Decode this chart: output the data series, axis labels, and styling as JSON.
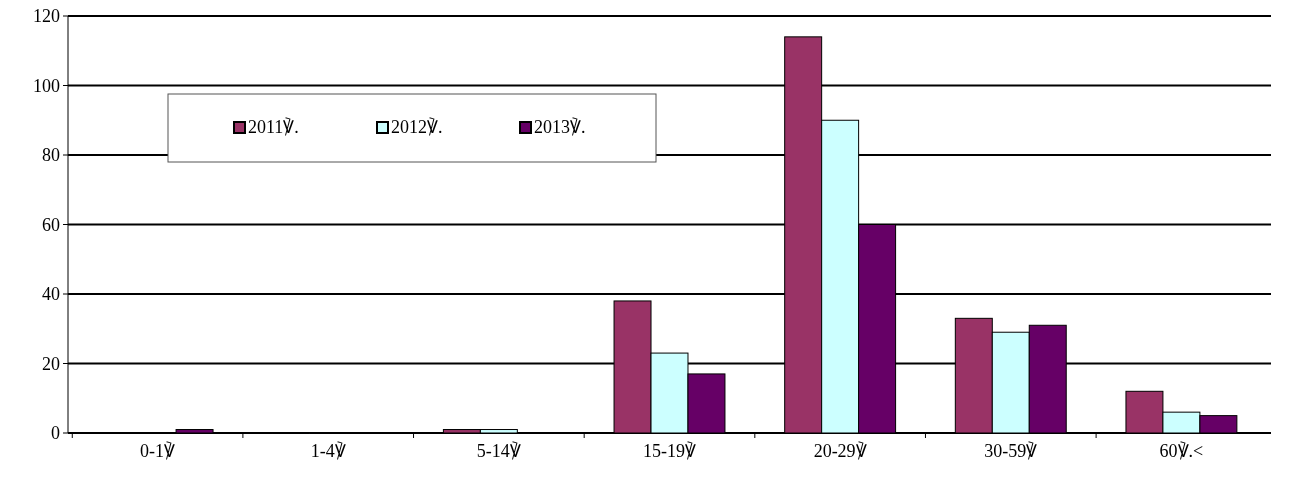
{
  "chart_data": {
    "type": "bar",
    "categories": [
      "0-1℣",
      "1-4℣",
      "5-14℣",
      "15-19℣",
      "20-29℣",
      "30-59℣",
      "60℣.<"
    ],
    "series": [
      {
        "name": "2011℣.",
        "color": "#993366",
        "values": [
          0,
          0,
          1,
          38,
          114,
          33,
          12
        ]
      },
      {
        "name": "2012℣.",
        "color": "#ccffff",
        "values": [
          0,
          0,
          1,
          23,
          90,
          29,
          6
        ]
      },
      {
        "name": "2013℣.",
        "color": "#660066",
        "values": [
          1,
          0,
          0,
          17,
          60,
          31,
          5
        ]
      }
    ],
    "ylim": [
      0,
      120
    ],
    "yticks": [
      0,
      20,
      40,
      60,
      80,
      100,
      120
    ],
    "grid": "y",
    "legend": "top left"
  }
}
